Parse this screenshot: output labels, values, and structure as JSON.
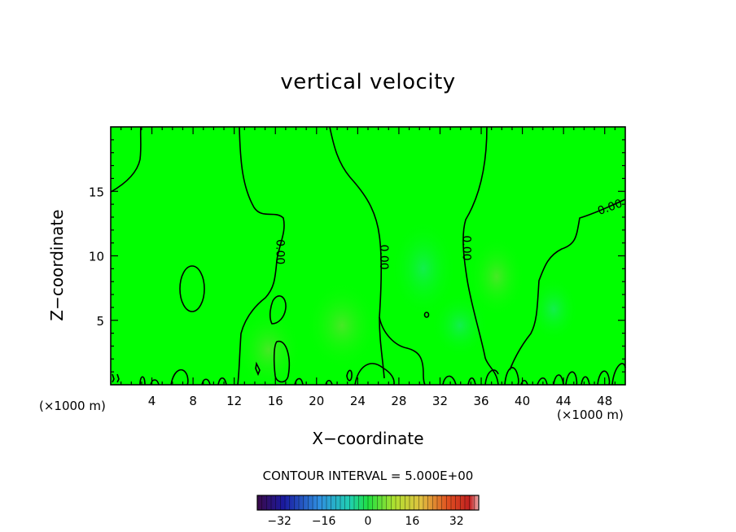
{
  "chart_data": {
    "type": "heatmap",
    "title": "vertical velocity",
    "xlabel": "X−coordinate",
    "ylabel": "Z−coordinate",
    "x_unit_left": "(×1000 m)",
    "x_unit_right": "(×1000 m)",
    "xlim": [
      0,
      50
    ],
    "ylim": [
      0,
      20
    ],
    "x_ticks": [
      "4",
      "8",
      "12",
      "16",
      "20",
      "24",
      "28",
      "32",
      "36",
      "40",
      "44",
      "48"
    ],
    "x_tick_values": [
      4,
      8,
      12,
      16,
      20,
      24,
      28,
      32,
      36,
      40,
      44,
      48
    ],
    "y_ticks": [
      "5",
      "10",
      "15"
    ],
    "y_tick_values": [
      5,
      10,
      15
    ],
    "contour_labels": [
      {
        "text": "0.00",
        "x": 16.5,
        "y": 10.3
      },
      {
        "text": "0.00",
        "x": 26.6,
        "y": 9.9
      },
      {
        "text": "0.00",
        "x": 34.6,
        "y": 10.6
      },
      {
        "text": "0.00",
        "x": 48.5,
        "y": 13.8
      }
    ],
    "contour_interval_label": "CONTOUR INTERVAL = 5.000E+00",
    "colorbar": {
      "min": -40,
      "max": 40,
      "ticks": [
        "−32",
        "−16",
        "0",
        "16",
        "32"
      ],
      "tick_values": [
        -32,
        -16,
        0,
        16,
        32
      ]
    },
    "colors": {
      "field": "#00ff00",
      "contour": "#000000"
    }
  }
}
